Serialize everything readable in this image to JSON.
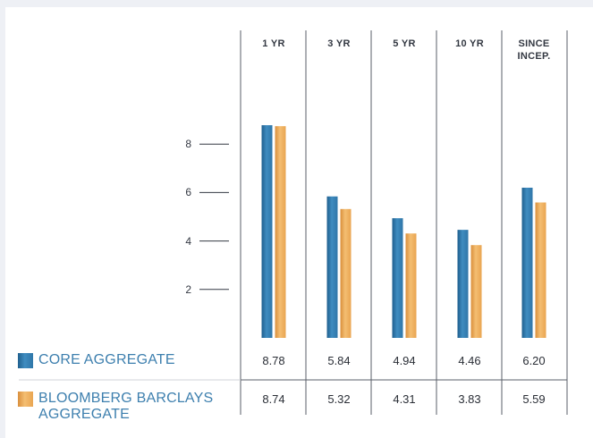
{
  "chart_data": {
    "type": "bar",
    "categories": [
      "1 YR",
      "3 YR",
      "5 YR",
      "10 YR",
      "SINCE INCEP."
    ],
    "category_lines": [
      [
        "1 YR"
      ],
      [
        "3 YR"
      ],
      [
        "5 YR"
      ],
      [
        "10 YR"
      ],
      [
        "SINCE",
        "INCEP."
      ]
    ],
    "series": [
      {
        "name": "CORE AGGREGATE",
        "values": [
          8.78,
          5.84,
          4.94,
          4.46,
          6.2
        ],
        "labels": [
          "8.78",
          "5.84",
          "4.94",
          "4.46",
          "6.20"
        ],
        "color": "#3a86b8"
      },
      {
        "name": "BLOOMBERG BARCLAYS AGGREGATE",
        "values": [
          8.74,
          5.32,
          4.31,
          3.83,
          5.59
        ],
        "labels": [
          "8.74",
          "5.32",
          "4.31",
          "3.83",
          "5.59"
        ],
        "color": "#eeae5c"
      }
    ],
    "legend_lines": [
      [
        "CORE AGGREGATE"
      ],
      [
        "BLOOMBERG BARCLAYS",
        "AGGREGATE"
      ]
    ],
    "yticks": [
      "2",
      "4",
      "6",
      "8"
    ],
    "ylim": [
      0,
      9
    ],
    "grid": false,
    "title": "",
    "xlabel": "",
    "ylabel": ""
  }
}
